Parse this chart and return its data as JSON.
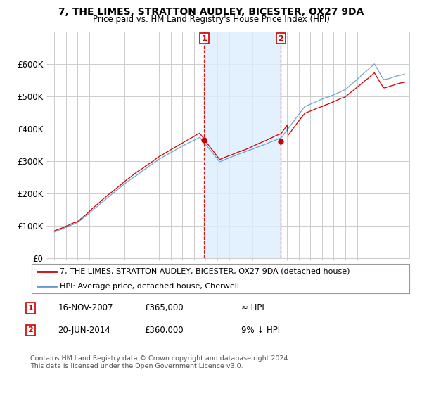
{
  "title": "7, THE LIMES, STRATTON AUDLEY, BICESTER, OX27 9DA",
  "subtitle": "Price paid vs. HM Land Registry's House Price Index (HPI)",
  "legend_line1": "7, THE LIMES, STRATTON AUDLEY, BICESTER, OX27 9DA (detached house)",
  "legend_line2": "HPI: Average price, detached house, Cherwell",
  "annotation_footer": "Contains HM Land Registry data © Crown copyright and database right 2024.\nThis data is licensed under the Open Government Licence v3.0.",
  "sale1_date": "16-NOV-2007",
  "sale1_price": 365000,
  "sale1_note": "≈ HPI",
  "sale2_date": "20-JUN-2014",
  "sale2_price": 360000,
  "sale2_note": "9% ↓ HPI",
  "ylim": [
    0,
    700000
  ],
  "yticks": [
    0,
    100000,
    200000,
    300000,
    400000,
    500000,
    600000
  ],
  "background_color": "#ffffff",
  "plot_bg_color": "#ffffff",
  "hpi_color": "#6699cc",
  "price_color": "#cc0000",
  "shade_color": "#ddeeff",
  "grid_color": "#cccccc",
  "sale1_x": 2007.88,
  "sale2_x": 2014.47,
  "shade_x1": 2007.88,
  "shade_x2": 2014.47,
  "xlim_left": 1994.5,
  "xlim_right": 2025.5
}
